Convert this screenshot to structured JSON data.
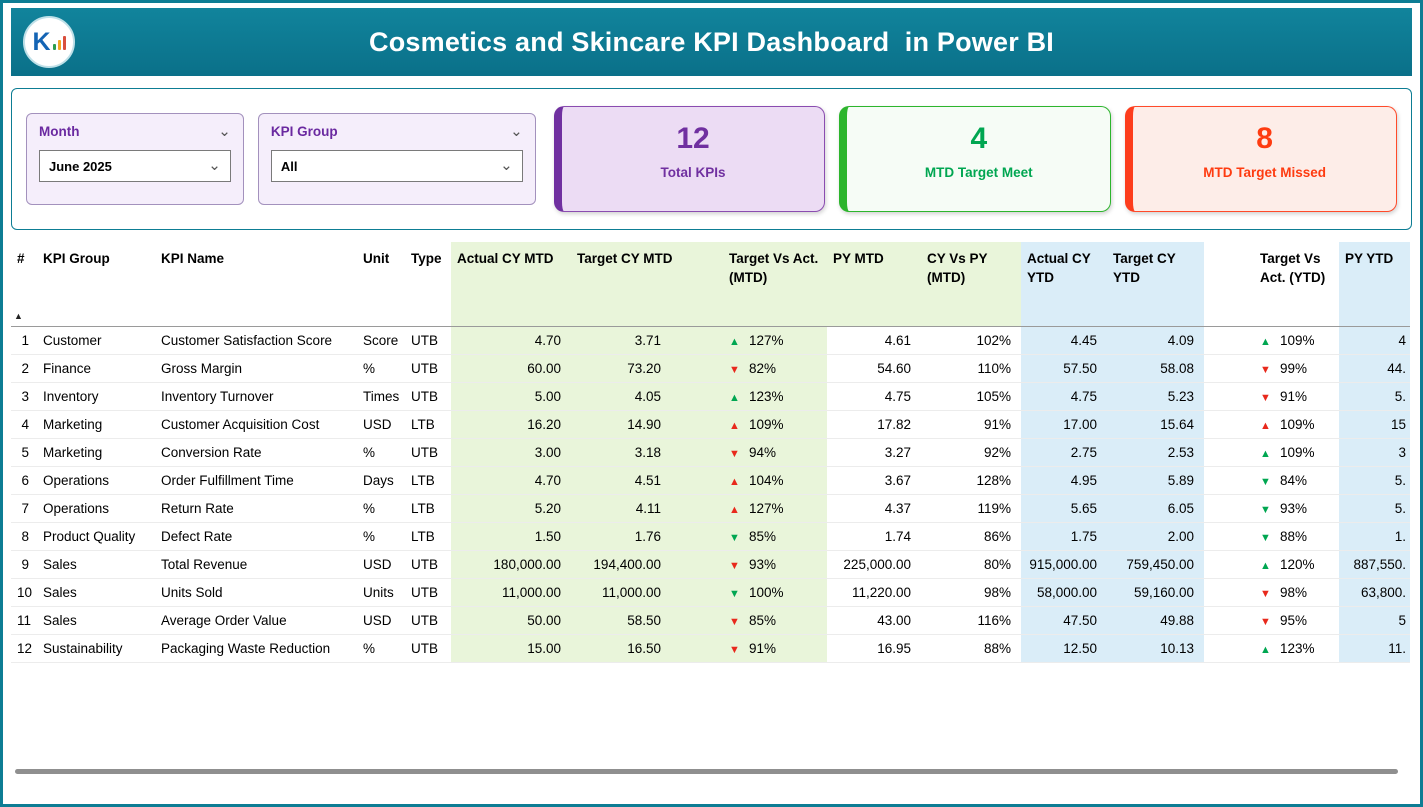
{
  "colors": {
    "teal": "#0d7d94",
    "purple": "#7030a0",
    "green": "#00a651",
    "red": "#fe3b10",
    "green_column_bg": "#e9f5da",
    "blue_column_bg": "#daedf8"
  },
  "icons": {
    "chevron_down": "⌄",
    "sort_ascending": "▲",
    "trend_up": "▲",
    "trend_down": "▼"
  },
  "banner": {
    "title": "Cosmetics and Skincare KPI Dashboard  in Power BI",
    "logo_letter": "K"
  },
  "slicers": [
    {
      "label": "Month",
      "value": "June 2025"
    },
    {
      "label": "KPI Group",
      "value": "All"
    }
  ],
  "cards": [
    {
      "value": "12",
      "label": "Total KPIs"
    },
    {
      "value": "4",
      "label": "MTD Target Meet"
    },
    {
      "value": "8",
      "label": "MTD Target Missed"
    }
  ],
  "table": {
    "columns": [
      "#",
      "KPI Group",
      "KPI Name",
      "Unit",
      "Type",
      "Actual CY MTD",
      "Target CY MTD",
      "Target Vs Act. (MTD)",
      "PY MTD",
      "CY Vs PY (MTD)",
      "Actual CY YTD",
      "Target CY YTD",
      "Target Vs Act. (YTD)",
      "PY YTD"
    ],
    "rows": [
      [
        "1",
        "Customer",
        "Customer Satisfaction Score",
        "Score",
        "UTB",
        "4.70",
        "3.71",
        {
          "dir": "up",
          "tone": "good",
          "pct": "127%"
        },
        "4.61",
        "102%",
        "4.45",
        "4.09",
        {
          "dir": "up",
          "tone": "good",
          "pct": "109%"
        },
        "4"
      ],
      [
        "2",
        "Finance",
        "Gross Margin",
        "%",
        "UTB",
        "60.00",
        "73.20",
        {
          "dir": "down",
          "tone": "bad",
          "pct": "82%"
        },
        "54.60",
        "110%",
        "57.50",
        "58.08",
        {
          "dir": "down",
          "tone": "bad",
          "pct": "99%"
        },
        "44."
      ],
      [
        "3",
        "Inventory",
        "Inventory Turnover",
        "Times",
        "UTB",
        "5.00",
        "4.05",
        {
          "dir": "up",
          "tone": "good",
          "pct": "123%"
        },
        "4.75",
        "105%",
        "4.75",
        "5.23",
        {
          "dir": "down",
          "tone": "bad",
          "pct": "91%"
        },
        "5."
      ],
      [
        "4",
        "Marketing",
        "Customer Acquisition Cost",
        "USD",
        "LTB",
        "16.20",
        "14.90",
        {
          "dir": "up",
          "tone": "bad",
          "pct": "109%"
        },
        "17.82",
        "91%",
        "17.00",
        "15.64",
        {
          "dir": "up",
          "tone": "bad",
          "pct": "109%"
        },
        "15"
      ],
      [
        "5",
        "Marketing",
        "Conversion Rate",
        "%",
        "UTB",
        "3.00",
        "3.18",
        {
          "dir": "down",
          "tone": "bad",
          "pct": "94%"
        },
        "3.27",
        "92%",
        "2.75",
        "2.53",
        {
          "dir": "up",
          "tone": "good",
          "pct": "109%"
        },
        "3"
      ],
      [
        "6",
        "Operations",
        "Order Fulfillment Time",
        "Days",
        "LTB",
        "4.70",
        "4.51",
        {
          "dir": "up",
          "tone": "bad",
          "pct": "104%"
        },
        "3.67",
        "128%",
        "4.95",
        "5.89",
        {
          "dir": "down",
          "tone": "good",
          "pct": "84%"
        },
        "5."
      ],
      [
        "7",
        "Operations",
        "Return Rate",
        "%",
        "LTB",
        "5.20",
        "4.11",
        {
          "dir": "up",
          "tone": "bad",
          "pct": "127%"
        },
        "4.37",
        "119%",
        "5.65",
        "6.05",
        {
          "dir": "down",
          "tone": "good",
          "pct": "93%"
        },
        "5."
      ],
      [
        "8",
        "Product Quality",
        "Defect Rate",
        "%",
        "LTB",
        "1.50",
        "1.76",
        {
          "dir": "down",
          "tone": "good",
          "pct": "85%"
        },
        "1.74",
        "86%",
        "1.75",
        "2.00",
        {
          "dir": "down",
          "tone": "good",
          "pct": "88%"
        },
        "1."
      ],
      [
        "9",
        "Sales",
        "Total Revenue",
        "USD",
        "UTB",
        "180,000.00",
        "194,400.00",
        {
          "dir": "down",
          "tone": "bad",
          "pct": "93%"
        },
        "225,000.00",
        "80%",
        "915,000.00",
        "759,450.00",
        {
          "dir": "up",
          "tone": "good",
          "pct": "120%"
        },
        "887,550."
      ],
      [
        "10",
        "Sales",
        "Units Sold",
        "Units",
        "UTB",
        "11,000.00",
        "11,000.00",
        {
          "dir": "down",
          "tone": "good",
          "pct": "100%"
        },
        "11,220.00",
        "98%",
        "58,000.00",
        "59,160.00",
        {
          "dir": "down",
          "tone": "bad",
          "pct": "98%"
        },
        "63,800."
      ],
      [
        "11",
        "Sales",
        "Average Order Value",
        "USD",
        "UTB",
        "50.00",
        "58.50",
        {
          "dir": "down",
          "tone": "bad",
          "pct": "85%"
        },
        "43.00",
        "116%",
        "47.50",
        "49.88",
        {
          "dir": "down",
          "tone": "bad",
          "pct": "95%"
        },
        "5"
      ],
      [
        "12",
        "Sustainability",
        "Packaging Waste Reduction",
        "%",
        "UTB",
        "15.00",
        "16.50",
        {
          "dir": "down",
          "tone": "bad",
          "pct": "91%"
        },
        "16.95",
        "88%",
        "12.50",
        "10.13",
        {
          "dir": "up",
          "tone": "good",
          "pct": "123%"
        },
        "11."
      ]
    ]
  }
}
